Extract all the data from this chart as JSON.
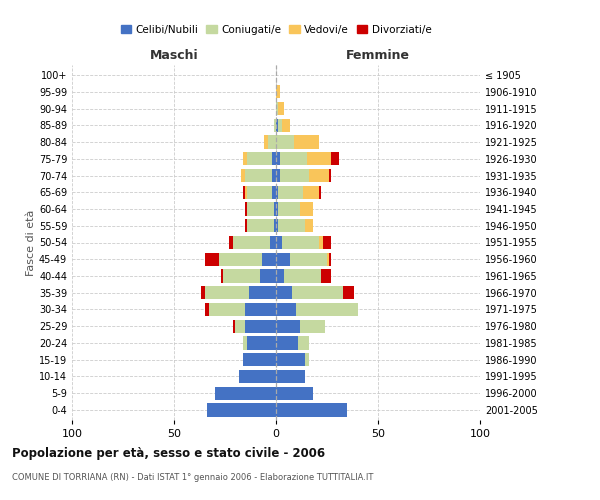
{
  "age_groups": [
    "0-4",
    "5-9",
    "10-14",
    "15-19",
    "20-24",
    "25-29",
    "30-34",
    "35-39",
    "40-44",
    "45-49",
    "50-54",
    "55-59",
    "60-64",
    "65-69",
    "70-74",
    "75-79",
    "80-84",
    "85-89",
    "90-94",
    "95-99",
    "100+"
  ],
  "birth_years": [
    "2001-2005",
    "1996-2000",
    "1991-1995",
    "1986-1990",
    "1981-1985",
    "1976-1980",
    "1971-1975",
    "1966-1970",
    "1961-1965",
    "1956-1960",
    "1951-1955",
    "1946-1950",
    "1941-1945",
    "1936-1940",
    "1931-1935",
    "1926-1930",
    "1921-1925",
    "1916-1920",
    "1911-1915",
    "1906-1910",
    "≤ 1905"
  ],
  "male_celibi": [
    34,
    30,
    18,
    16,
    14,
    15,
    15,
    13,
    8,
    7,
    3,
    1,
    1,
    2,
    2,
    2,
    0,
    0,
    0,
    0,
    0
  ],
  "male_coniugati": [
    0,
    0,
    0,
    0,
    2,
    5,
    18,
    22,
    18,
    21,
    18,
    13,
    13,
    12,
    13,
    12,
    4,
    1,
    0,
    0,
    0
  ],
  "male_vedovi": [
    0,
    0,
    0,
    0,
    0,
    0,
    0,
    0,
    0,
    0,
    0,
    0,
    0,
    1,
    2,
    2,
    2,
    0,
    0,
    0,
    0
  ],
  "male_divorziati": [
    0,
    0,
    0,
    0,
    0,
    1,
    2,
    2,
    1,
    7,
    2,
    1,
    1,
    1,
    0,
    0,
    0,
    0,
    0,
    0,
    0
  ],
  "female_celibi": [
    35,
    18,
    14,
    14,
    11,
    12,
    10,
    8,
    4,
    7,
    3,
    1,
    1,
    1,
    2,
    2,
    0,
    1,
    0,
    0,
    0
  ],
  "female_coniugati": [
    0,
    0,
    0,
    2,
    5,
    12,
    30,
    25,
    18,
    18,
    18,
    13,
    11,
    12,
    14,
    13,
    9,
    2,
    1,
    0,
    0
  ],
  "female_vedovi": [
    0,
    0,
    0,
    0,
    0,
    0,
    0,
    0,
    0,
    1,
    2,
    4,
    6,
    8,
    10,
    12,
    12,
    4,
    3,
    2,
    0
  ],
  "female_divorziati": [
    0,
    0,
    0,
    0,
    0,
    0,
    0,
    5,
    5,
    1,
    4,
    0,
    0,
    1,
    1,
    4,
    0,
    0,
    0,
    0,
    0
  ],
  "colors": {
    "celibi": "#4472c4",
    "coniugati": "#c5d9a0",
    "vedovi": "#f9c55a",
    "divorziati": "#cc0000"
  },
  "xlim": 100,
  "title1": "Popolazione per età, sesso e stato civile - 2006",
  "title2": "COMUNE DI TORRIANA (RN) - Dati ISTAT 1° gennaio 2006 - Elaborazione TUTTITALIA.IT",
  "ylabel_left": "Fasce di età",
  "xlabel_left": "Maschi",
  "xlabel_right": "Femmine"
}
